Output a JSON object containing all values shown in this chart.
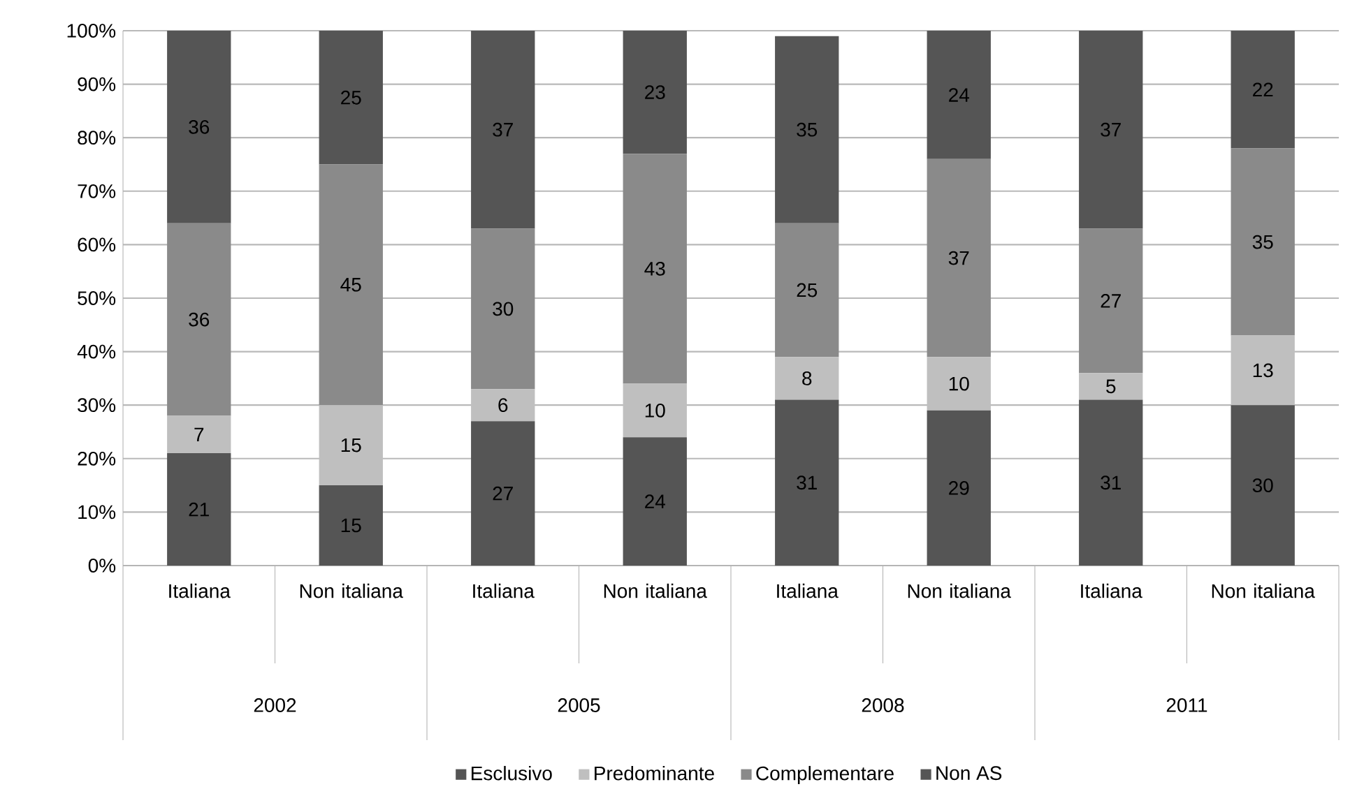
{
  "chart_data": {
    "type": "bar",
    "stacked": true,
    "data_labels": true,
    "grid": "y",
    "legend": "bottom",
    "categories": [
      "Italiana",
      "Non italiana",
      "Italiana",
      "Non italiana",
      "Italiana",
      "Non italiana",
      "Italiana",
      "Non italiana"
    ],
    "annotations": [
      "2002",
      "2005",
      "2008",
      "2011"
    ],
    "ylim": [
      0,
      100
    ],
    "yticks": [
      {
        "value": 0,
        "label": "0%"
      },
      {
        "value": 10,
        "label": "10%"
      },
      {
        "value": 20,
        "label": "20%"
      },
      {
        "value": 30,
        "label": "30%"
      },
      {
        "value": 40,
        "label": "40%"
      },
      {
        "value": 50,
        "label": "50%"
      },
      {
        "value": 60,
        "label": "60%"
      },
      {
        "value": 70,
        "label": "70%"
      },
      {
        "value": 80,
        "label": "80%"
      },
      {
        "value": 90,
        "label": "90%"
      },
      {
        "value": 100,
        "label": "100%"
      }
    ],
    "series": [
      {
        "name": "Esclusivo",
        "color": "#555555",
        "values": [
          21,
          15,
          27,
          24,
          31,
          29,
          31,
          30
        ]
      },
      {
        "name": "Predominante",
        "color": "#bfbfbf",
        "values": [
          7,
          15,
          6,
          10,
          8,
          10,
          5,
          13
        ]
      },
      {
        "name": "Complementare",
        "color": "#8a8a8a",
        "values": [
          36,
          45,
          30,
          43,
          25,
          37,
          27,
          35
        ]
      },
      {
        "name": "Non AS",
        "color": "#555555",
        "values": [
          36,
          25,
          37,
          23,
          35,
          24,
          37,
          22
        ]
      }
    ]
  }
}
